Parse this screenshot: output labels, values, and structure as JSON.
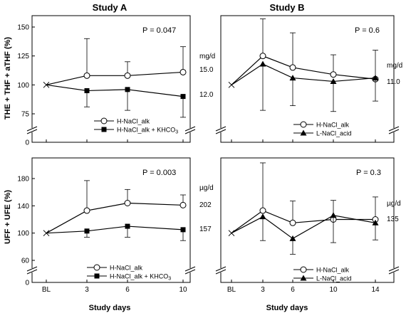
{
  "figure": {
    "titles": [
      "Study A",
      "Study B"
    ],
    "ylabels": [
      "THE + THF + aTHF (%)",
      "UFF + UFE (%)"
    ],
    "xlabel": "Study days"
  },
  "chart_data": [
    {
      "id": "A_top",
      "type": "line",
      "x_categories": [
        "BL",
        "3",
        "6",
        "10"
      ],
      "x_is_studyA": true,
      "ylim": [
        0,
        150
      ],
      "yticks": [
        0,
        75,
        100,
        125,
        150
      ],
      "axis_break": true,
      "pvalue": "P = 0.047",
      "unit": "mg/d",
      "right_labels": [
        "15.0",
        "12.0"
      ],
      "series": [
        {
          "name": "H-NaCl_alk",
          "marker": "circle-open",
          "values": [
            100,
            108,
            108,
            111
          ],
          "err_up": [
            0,
            32,
            12,
            22
          ],
          "err_down": [
            0,
            0,
            0,
            0
          ]
        },
        {
          "name": "H-NaCl_alk + KHCO3",
          "marker": "square-filled",
          "values": [
            100,
            95,
            96,
            90
          ],
          "err_up": [
            0,
            0,
            0,
            0
          ],
          "err_down": [
            0,
            14,
            18,
            18
          ]
        }
      ]
    },
    {
      "id": "B_top",
      "type": "line",
      "x_categories": [
        "BL",
        "3",
        "6",
        "10",
        "14"
      ],
      "ylim": [
        0,
        150
      ],
      "yticks": [],
      "axis_break": true,
      "pvalue": "P = 0.6",
      "unit": "mg/d",
      "right_labels": [
        "11.0"
      ],
      "series": [
        {
          "name": "H-NaCl_alk",
          "marker": "circle-open",
          "values": [
            100,
            125,
            115,
            109,
            105
          ],
          "err_up": [
            0,
            32,
            30,
            17,
            25
          ],
          "err_down": [
            0,
            0,
            0,
            0,
            0
          ]
        },
        {
          "name": "L-NaCl_acid",
          "marker": "triangle-filled",
          "values": [
            100,
            118,
            106,
            103,
            106
          ],
          "err_up": [
            0,
            0,
            0,
            0,
            0
          ],
          "err_down": [
            0,
            40,
            24,
            26,
            20
          ]
        }
      ]
    },
    {
      "id": "A_bottom",
      "type": "line",
      "x_categories": [
        "BL",
        "3",
        "6",
        "10"
      ],
      "ylim": [
        0,
        180
      ],
      "yticks": [
        0,
        60,
        100,
        140,
        180
      ],
      "axis_break": true,
      "pvalue": "P = 0.003",
      "unit": "µg/d",
      "right_labels": [
        "202",
        "157"
      ],
      "series": [
        {
          "name": "H-NaCl_alk",
          "marker": "circle-open",
          "values": [
            100,
            133,
            144,
            141
          ],
          "err_up": [
            0,
            44,
            20,
            15
          ],
          "err_down": [
            0,
            0,
            0,
            0
          ]
        },
        {
          "name": "H-NaCl_alk + KHCO3",
          "marker": "square-filled",
          "values": [
            100,
            103,
            110,
            105
          ],
          "err_up": [
            0,
            0,
            0,
            0
          ],
          "err_down": [
            0,
            9,
            16,
            16
          ]
        }
      ]
    },
    {
      "id": "B_bottom",
      "type": "line",
      "x_categories": [
        "BL",
        "3",
        "6",
        "10",
        "14"
      ],
      "ylim": [
        0,
        180
      ],
      "yticks": [],
      "axis_break": true,
      "pvalue": "P = 0.3",
      "unit": "µg/d",
      "right_labels": [
        "135"
      ],
      "series": [
        {
          "name": "H-NaCl_alk",
          "marker": "circle-open",
          "values": [
            100,
            133,
            115,
            120,
            120
          ],
          "err_up": [
            0,
            70,
            32,
            28,
            33
          ],
          "err_down": [
            0,
            0,
            0,
            0,
            0
          ]
        },
        {
          "name": "L-NaCl_acid",
          "marker": "triangle-filled",
          "values": [
            100,
            124,
            92,
            126,
            115
          ],
          "err_up": [
            0,
            0,
            0,
            0,
            0
          ],
          "err_down": [
            0,
            35,
            23,
            40,
            25
          ]
        }
      ]
    }
  ]
}
